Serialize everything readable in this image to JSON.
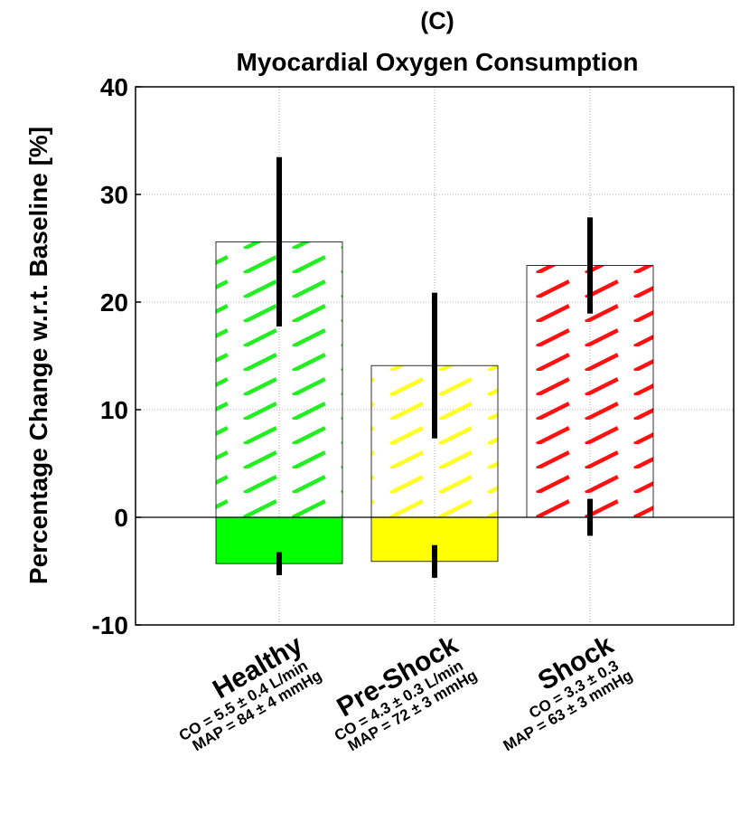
{
  "chart_data": {
    "type": "bar",
    "title": [
      "(C)",
      "Myocardial Oxygen Consumption"
    ],
    "y_label": "Percentage Change w.r.t. Baseline [%]",
    "categories": [
      "Healthy",
      "Pre-Shock",
      "Shock"
    ],
    "category_details": [
      [
        "CO = 5.5 ± 0.4 L/min",
        "MAP = 84 ± 4 mmHg"
      ],
      [
        "CO = 4.3 ± 0.3 L/min",
        "MAP = 72 ± 3 mmHg"
      ],
      [
        "CO = 3.3 ± 0.3",
        "MAP = 63 ± 3 mmHg"
      ]
    ],
    "series": [
      {
        "values": [
          25.6,
          14.1,
          23.4
        ],
        "errors": [
          7.7,
          6.6,
          4.3
        ],
        "colors": [
          "#22ee22",
          "#ffff22",
          "#ff1111"
        ],
        "hatched": true
      },
      {
        "values": [
          -4.3,
          -4.1,
          0
        ],
        "errors": [
          0.9,
          1.35,
          1.55
        ],
        "colors": [
          "#00ff00",
          "#ffff00",
          "#ff0000"
        ],
        "hatched": false
      }
    ],
    "ylim": [
      -10,
      40
    ],
    "yticks": [
      -10,
      0,
      10,
      20,
      30,
      40
    ],
    "grid": true
  }
}
